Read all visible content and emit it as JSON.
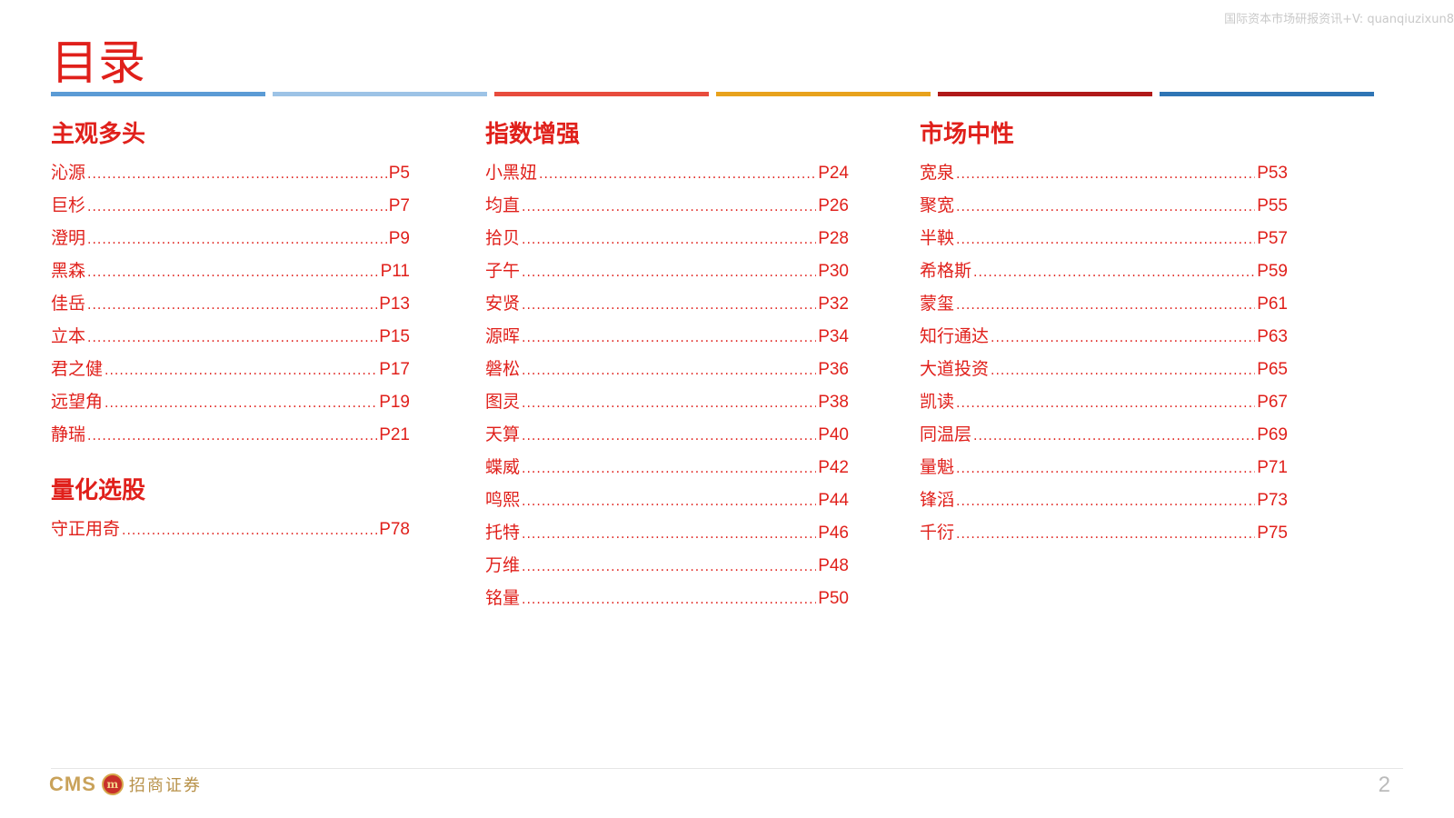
{
  "watermark": "国际资本市场研报资讯+V: quanqiuzixun8",
  "title": "目录",
  "color_bar": [
    "#5b9bd5",
    "#9dc3e6",
    "#e84c3d",
    "#e8a21c",
    "#b01919",
    "#2f75b5"
  ],
  "sections": {
    "subjective": {
      "title": "主观多头",
      "items": [
        {
          "label": "沁源",
          "page": "P5"
        },
        {
          "label": "巨杉",
          "page": "P7"
        },
        {
          "label": "澄明",
          "page": "P9"
        },
        {
          "label": "黑森",
          "page": "P11"
        },
        {
          "label": "佳岳",
          "page": "P13"
        },
        {
          "label": "立本",
          "page": "P15"
        },
        {
          "label": "君之健",
          "page": "P17"
        },
        {
          "label": "远望角",
          "page": "P19"
        },
        {
          "label": "静瑞",
          "page": "P21"
        }
      ]
    },
    "quant_stock": {
      "title": "量化选股",
      "items": [
        {
          "label": "守正用奇",
          "page": "P78"
        }
      ]
    },
    "index_enhanced": {
      "title": "指数增强",
      "items": [
        {
          "label": "小黑妞",
          "page": "P24"
        },
        {
          "label": "均直",
          "page": "P26"
        },
        {
          "label": "拾贝",
          "page": "P28"
        },
        {
          "label": "子午",
          "page": "P30"
        },
        {
          "label": "安贤",
          "page": "P32"
        },
        {
          "label": "源晖",
          "page": "P34"
        },
        {
          "label": "磐松",
          "page": "P36"
        },
        {
          "label": "图灵",
          "page": "P38"
        },
        {
          "label": "天算",
          "page": "P40"
        },
        {
          "label": "蝶威",
          "page": "P42"
        },
        {
          "label": "鸣熙",
          "page": "P44"
        },
        {
          "label": "托特",
          "page": "P46"
        },
        {
          "label": "万维",
          "page": "P48"
        },
        {
          "label": "铭量",
          "page": "P50"
        }
      ]
    },
    "market_neutral": {
      "title": "市场中性",
      "items": [
        {
          "label": "宽泉",
          "page": "P53"
        },
        {
          "label": "聚宽",
          "page": "P55"
        },
        {
          "label": "半鞅",
          "page": "P57"
        },
        {
          "label": "希格斯",
          "page": "P59"
        },
        {
          "label": "蒙玺",
          "page": "P61"
        },
        {
          "label": "知行通达",
          "page": "P63"
        },
        {
          "label": "大道投资",
          "page": "P65"
        },
        {
          "label": "凯读",
          "page": "P67"
        },
        {
          "label": "同温层",
          "page": "P69"
        },
        {
          "label": "量魁",
          "page": "P71"
        },
        {
          "label": "锋滔",
          "page": "P73"
        },
        {
          "label": "千衍",
          "page": "P75"
        }
      ]
    }
  },
  "footer": {
    "logo_text": "CMS",
    "logo_mark": "m",
    "company_name": "招商证券",
    "page_number": "2"
  }
}
